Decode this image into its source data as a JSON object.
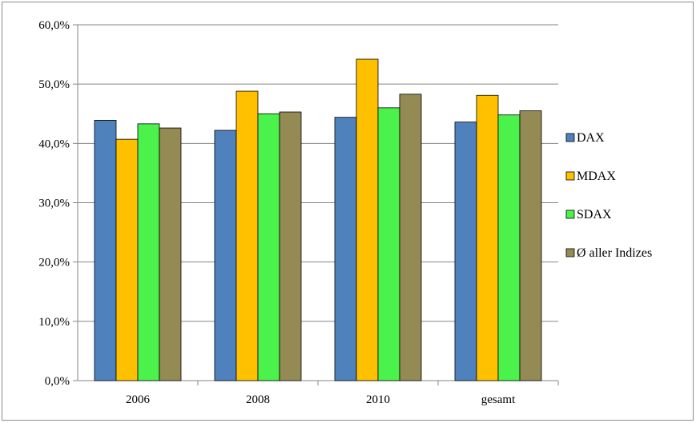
{
  "chart_data": {
    "type": "bar",
    "title": "",
    "xlabel": "",
    "ylabel": "",
    "categories": [
      "2006",
      "2008",
      "2010",
      "gesamt"
    ],
    "series": [
      {
        "name": "DAX",
        "color": "#4f81bd",
        "values": [
          43.9,
          42.2,
          44.4,
          43.6
        ]
      },
      {
        "name": "MDAX",
        "color": "#ffc000",
        "values": [
          40.7,
          48.8,
          54.2,
          48.1
        ]
      },
      {
        "name": "SDAX",
        "color": "#4cf24c",
        "values": [
          43.3,
          45.0,
          46.0,
          44.8
        ]
      },
      {
        "name": "Ø aller Indizes",
        "color": "#948a54",
        "values": [
          42.6,
          45.3,
          48.3,
          45.5
        ]
      }
    ],
    "ylim": [
      0,
      60
    ],
    "yticks": [
      "0,0%",
      "10,0%",
      "20,0%",
      "30,0%",
      "40,0%",
      "50,0%",
      "60,0%"
    ],
    "grid": true,
    "legend_position": "right"
  }
}
